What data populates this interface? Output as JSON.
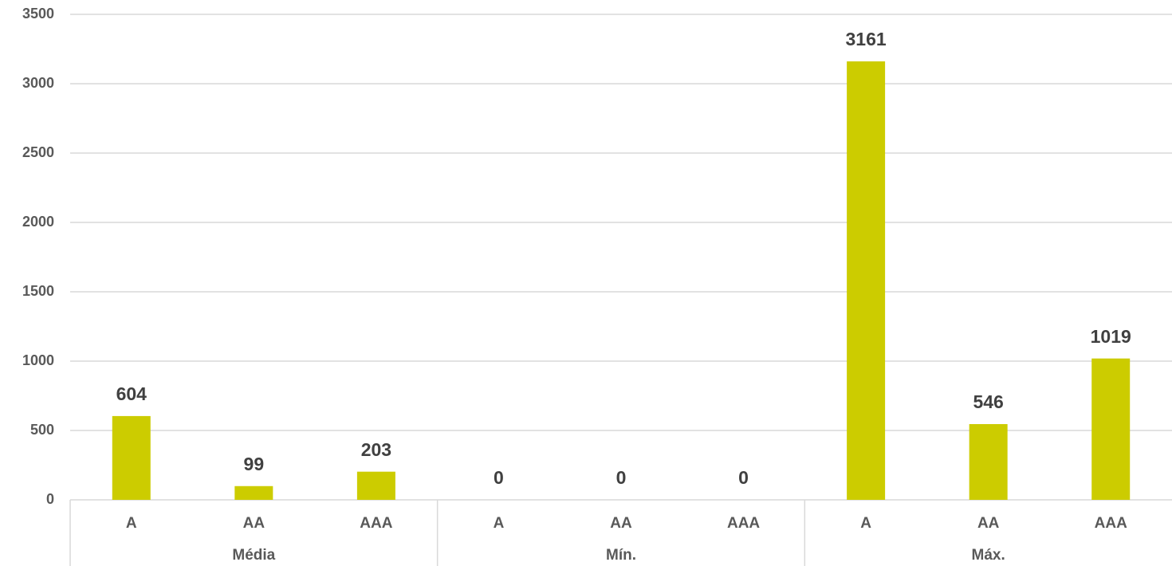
{
  "chart_data": {
    "type": "bar",
    "categories": [
      "A",
      "AA",
      "AAA",
      "A",
      "AA",
      "AAA",
      "A",
      "AA",
      "AAA"
    ],
    "groups": [
      "Média",
      "Mín.",
      "Máx."
    ],
    "values": [
      604,
      99,
      203,
      0,
      0,
      0,
      3161,
      546,
      1019
    ],
    "color": "#cccc00",
    "ylim": [
      0,
      3500
    ],
    "yticks": [
      0,
      500,
      1000,
      1500,
      2000,
      2500,
      3000,
      3500
    ],
    "grid": true
  }
}
